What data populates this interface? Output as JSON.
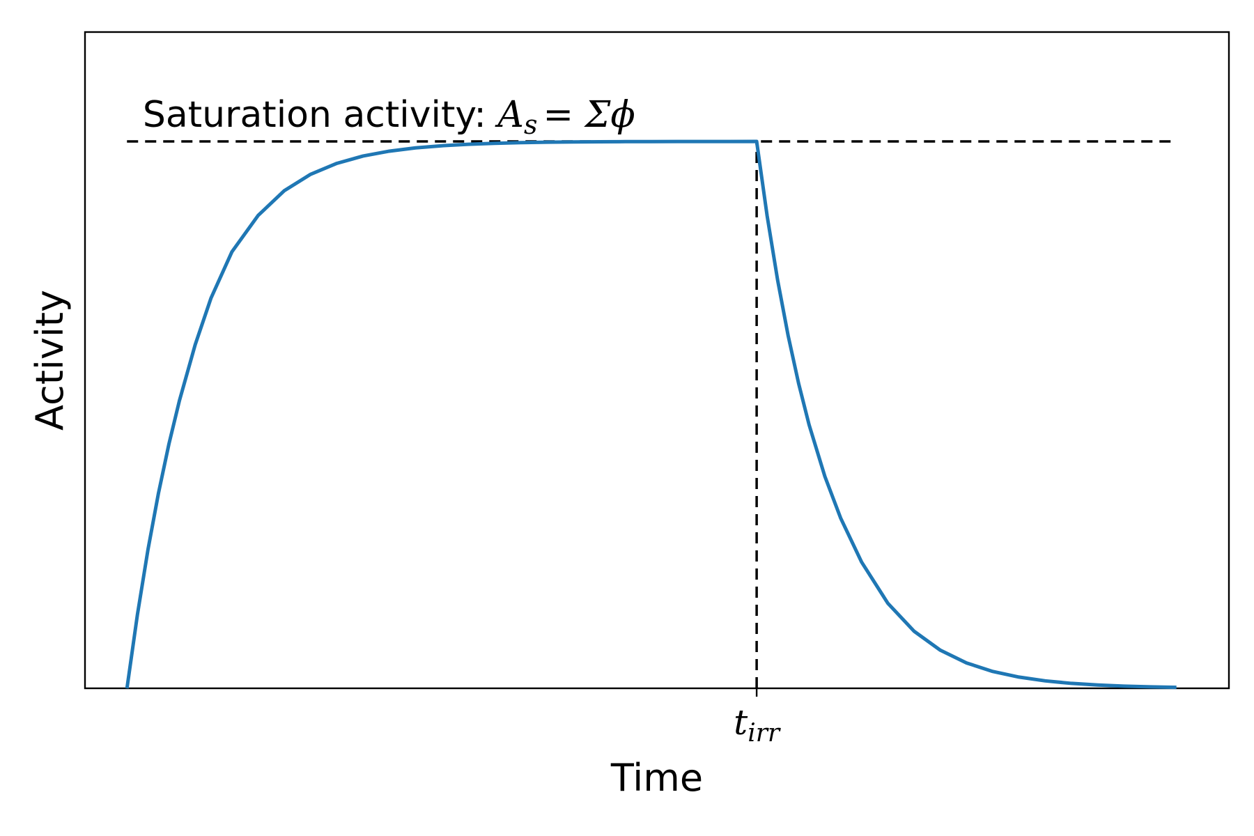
{
  "chart_data": {
    "type": "line",
    "title": "",
    "xlabel": "Time",
    "ylabel": "Activity",
    "xlim": [
      -0.08,
      2.1
    ],
    "ylim": [
      0,
      1.2
    ],
    "grid": false,
    "legend": "none",
    "x_ticks": [
      {
        "value": 1.2,
        "label_main": "t",
        "label_sub": "irr"
      }
    ],
    "y_ticks": [],
    "series": [
      {
        "color": "#1f77b4",
        "description_curve": "buildup then decay",
        "x": [
          0.0,
          0.02,
          0.04,
          0.06,
          0.08,
          0.1,
          0.13,
          0.16,
          0.2,
          0.25,
          0.3,
          0.35,
          0.4,
          0.45,
          0.5,
          0.55,
          0.6,
          0.65,
          0.7,
          0.75,
          0.8,
          0.85,
          0.9,
          0.95,
          1.0,
          1.05,
          1.1,
          1.15,
          1.2,
          1.22,
          1.24,
          1.26,
          1.28,
          1.3,
          1.33,
          1.36,
          1.4,
          1.45,
          1.5,
          1.55,
          1.6,
          1.65,
          1.7,
          1.75,
          1.8,
          1.85,
          1.9,
          1.95,
          2.0
        ],
        "y": [
          0.0,
          0.1353,
          0.2535,
          0.3567,
          0.4469,
          0.5262,
          0.6282,
          0.7132,
          0.7982,
          0.8647,
          0.9101,
          0.9399,
          0.9599,
          0.9733,
          0.9822,
          0.9882,
          0.9921,
          0.9947,
          0.9965,
          0.9977,
          0.9985,
          0.999,
          0.9993,
          0.9996,
          0.9997,
          0.9998,
          0.9999,
          0.9999,
          1.0,
          0.8637,
          0.7462,
          0.6449,
          0.5573,
          0.4816,
          0.3874,
          0.3114,
          0.2308,
          0.1555,
          0.1044,
          0.0697,
          0.0464,
          0.0308,
          0.0205,
          0.0136,
          0.009,
          0.006,
          0.004,
          0.0027,
          0.0018
        ]
      }
    ],
    "reference_lines": [
      {
        "orientation": "horizontal",
        "value": 1.0,
        "style": "dashed",
        "color": "#000000",
        "x_range": [
          0.0,
          2.0
        ]
      },
      {
        "orientation": "vertical",
        "value": 1.2,
        "style": "dashed",
        "color": "#000000",
        "y_range": [
          0.0,
          1.0
        ]
      }
    ],
    "annotations": [
      {
        "text_plain": "Saturation activity: ",
        "math_A": "A",
        "math_sub": "s",
        "math_rest": "= Σϕ",
        "x": 0.03,
        "y": 1.05
      }
    ]
  }
}
